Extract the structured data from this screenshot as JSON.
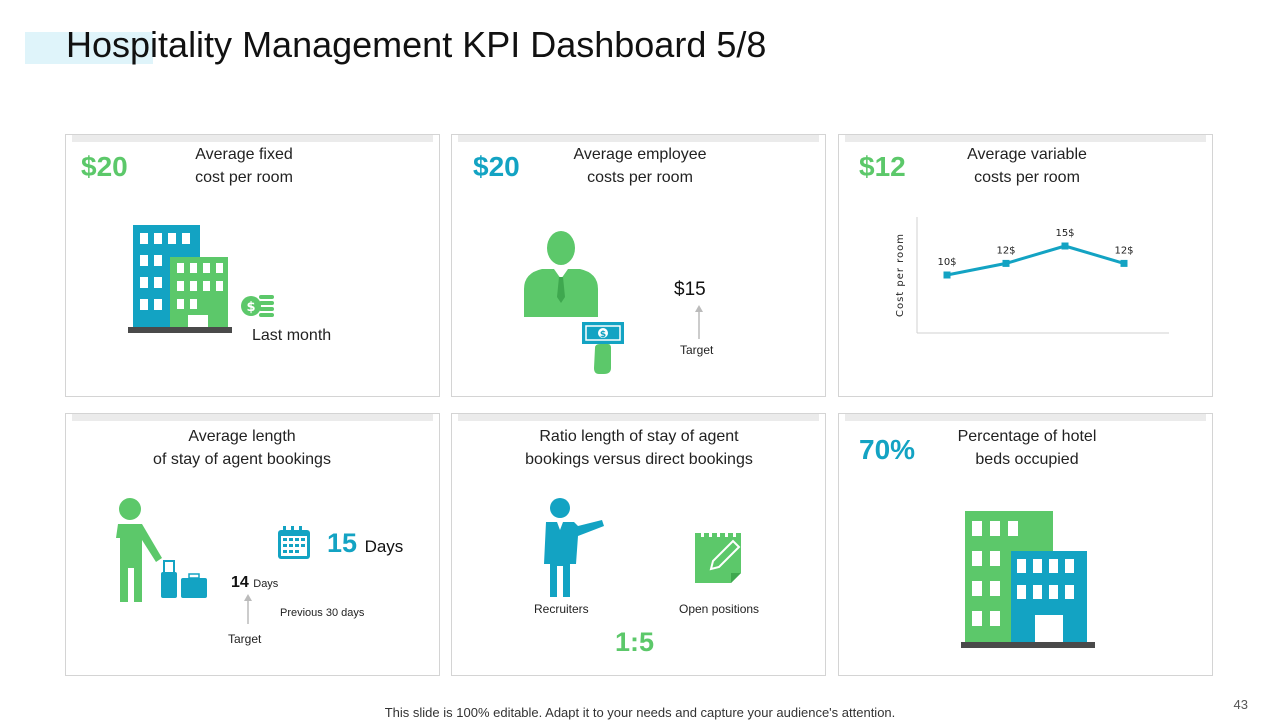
{
  "title": "Hospitality Management KPI Dashboard 5/8",
  "colors": {
    "green": "#5cc86a",
    "teal": "#13a3c3",
    "dark": "#4a4a4a"
  },
  "cards": {
    "fixed": {
      "value": "$20",
      "caption_line1": "Average fixed",
      "caption_line2": "cost per room",
      "note": "Last month",
      "icons": [
        "building-icon",
        "coins-icon"
      ]
    },
    "employee": {
      "value": "$20",
      "caption_line1": "Average employee",
      "caption_line2": "costs per room",
      "target_value": "$15",
      "target_label": "Target",
      "icons": [
        "businessman-icon",
        "money-hand-icon"
      ]
    },
    "variable": {
      "value": "$12",
      "caption_line1": "Average variable",
      "caption_line2": "costs per room"
    },
    "stay": {
      "caption_line1": "Average length",
      "caption_line2": "of stay of agent bookings",
      "value": "15",
      "unit": "Days",
      "target_value": "14",
      "target_unit": "Days",
      "previous_label": "Previous 30 days",
      "target_label": "Target",
      "icons": [
        "traveler-icon",
        "calendar-icon"
      ]
    },
    "ratio": {
      "caption_line1": "Ratio length of stay of agent",
      "caption_line2": "bookings versus direct bookings",
      "left_label": "Recruiters",
      "right_label": "Open positions",
      "ratio": "1:5",
      "icons": [
        "presenter-icon",
        "notepad-icon"
      ]
    },
    "occupancy": {
      "value": "70%",
      "caption_line1": "Percentage of hotel",
      "caption_line2": "beds occupied",
      "icons": [
        "hotel-icon"
      ]
    }
  },
  "chart_data": {
    "type": "line",
    "title": "",
    "xlabel": "",
    "ylabel": "Cost per room",
    "x": [
      "1",
      "2",
      "3",
      "4"
    ],
    "values": [
      10,
      12,
      15,
      12
    ],
    "labels": [
      "10$",
      "12$",
      "15$",
      "12$"
    ],
    "ylim": [
      0,
      20
    ],
    "color": "#13a3c3"
  },
  "footer": "This slide is 100% editable. Adapt it to your needs and capture your audience's attention.",
  "page_number": "43"
}
